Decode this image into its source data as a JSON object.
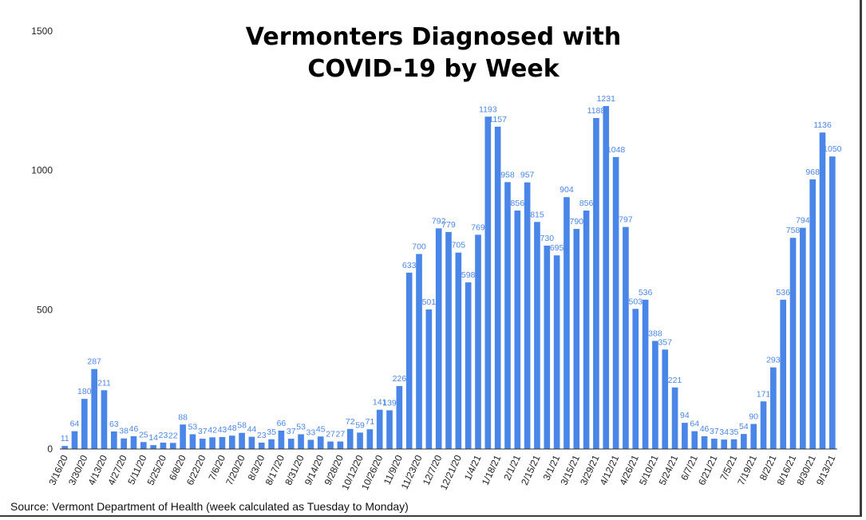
{
  "chart_data": {
    "type": "bar",
    "title_lines": [
      "Vermonters Diagnosed with",
      "COVID-19 by Week"
    ],
    "source": "Source: Vermont Department of Health (week calculated as Tuesday to Monday)",
    "ylim": [
      0,
      1500
    ],
    "yticks": [
      0,
      500,
      1000,
      1500
    ],
    "grid": false,
    "bar_color": "#4a86e8",
    "label_color": "#4a86e8",
    "values": [
      11,
      64,
      180,
      287,
      211,
      63,
      38,
      46,
      25,
      14,
      23,
      22,
      88,
      53,
      37,
      42,
      43,
      48,
      58,
      44,
      23,
      35,
      66,
      37,
      53,
      33,
      45,
      27,
      27,
      72,
      59,
      71,
      141,
      139,
      226,
      633,
      700,
      501,
      792,
      779,
      705,
      598,
      769,
      1193,
      1157,
      958,
      856,
      957,
      815,
      730,
      695,
      904,
      790,
      856,
      1188,
      1231,
      1048,
      797,
      503,
      536,
      388,
      357,
      221,
      94,
      64,
      46,
      37,
      34,
      35,
      54,
      90,
      171,
      293,
      536,
      758,
      794,
      968,
      1136,
      1050
    ],
    "xtick_labels": [
      "3/16/20",
      "3/30/20",
      "4/13/20",
      "4/27/20",
      "5/11/20",
      "5/25/20",
      "6/8/20",
      "6/22/20",
      "7/6/20",
      "7/20/20",
      "8/3/20",
      "8/17/20",
      "8/31/20",
      "9/14/20",
      "9/28/20",
      "10/12/20",
      "10/26/20",
      "11/9/20",
      "11/23/20",
      "12/7/20",
      "12/21/20",
      "1/4/21",
      "1/18/21",
      "2/1/21",
      "2/15/21",
      "3/1/21",
      "3/15/21",
      "3/29/21",
      "4/12/21",
      "4/26/21",
      "5/10/21",
      "5/24/21",
      "6/7/21",
      "6/21/21",
      "7/5/21",
      "7/19/21",
      "8/2/21",
      "8/16/21",
      "8/30/21",
      "9/13/21"
    ]
  }
}
